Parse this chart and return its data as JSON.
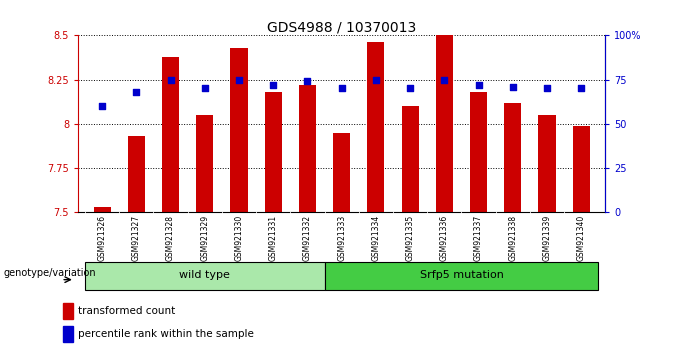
{
  "title": "GDS4988 / 10370013",
  "samples": [
    "GSM921326",
    "GSM921327",
    "GSM921328",
    "GSM921329",
    "GSM921330",
    "GSM921331",
    "GSM921332",
    "GSM921333",
    "GSM921334",
    "GSM921335",
    "GSM921336",
    "GSM921337",
    "GSM921338",
    "GSM921339",
    "GSM921340"
  ],
  "bar_values": [
    7.53,
    7.93,
    8.38,
    8.05,
    8.43,
    8.18,
    8.22,
    7.95,
    8.46,
    8.1,
    8.5,
    8.18,
    8.12,
    8.05,
    7.99
  ],
  "dot_values": [
    60,
    68,
    75,
    70,
    75,
    72,
    74,
    70,
    75,
    70,
    75,
    72,
    71,
    70,
    70
  ],
  "ylim_left": [
    7.5,
    8.5
  ],
  "ylim_right": [
    0,
    100
  ],
  "yticks_left": [
    7.5,
    7.75,
    8.0,
    8.25,
    8.5
  ],
  "ytick_labels_left": [
    "7.5",
    "7.75",
    "8",
    "8.25",
    "8.5"
  ],
  "yticks_right": [
    0,
    25,
    50,
    75,
    100
  ],
  "ytick_labels_right": [
    "0",
    "25",
    "50",
    "75",
    "100%"
  ],
  "bar_color": "#cc0000",
  "dot_color": "#0000cc",
  "bar_bottom": 7.5,
  "wild_type_samples": 7,
  "wild_type_label": "wild type",
  "mutation_label": "Srfp5 mutation",
  "genotype_label": "genotype/variation",
  "legend_bar_label": "transformed count",
  "legend_dot_label": "percentile rank within the sample",
  "tick_area_color": "#c8c8c8",
  "wt_box_color": "#aae8aa",
  "mut_box_color": "#44cc44",
  "title_fontsize": 10,
  "tick_fontsize": 7,
  "sample_fontsize": 5.5
}
